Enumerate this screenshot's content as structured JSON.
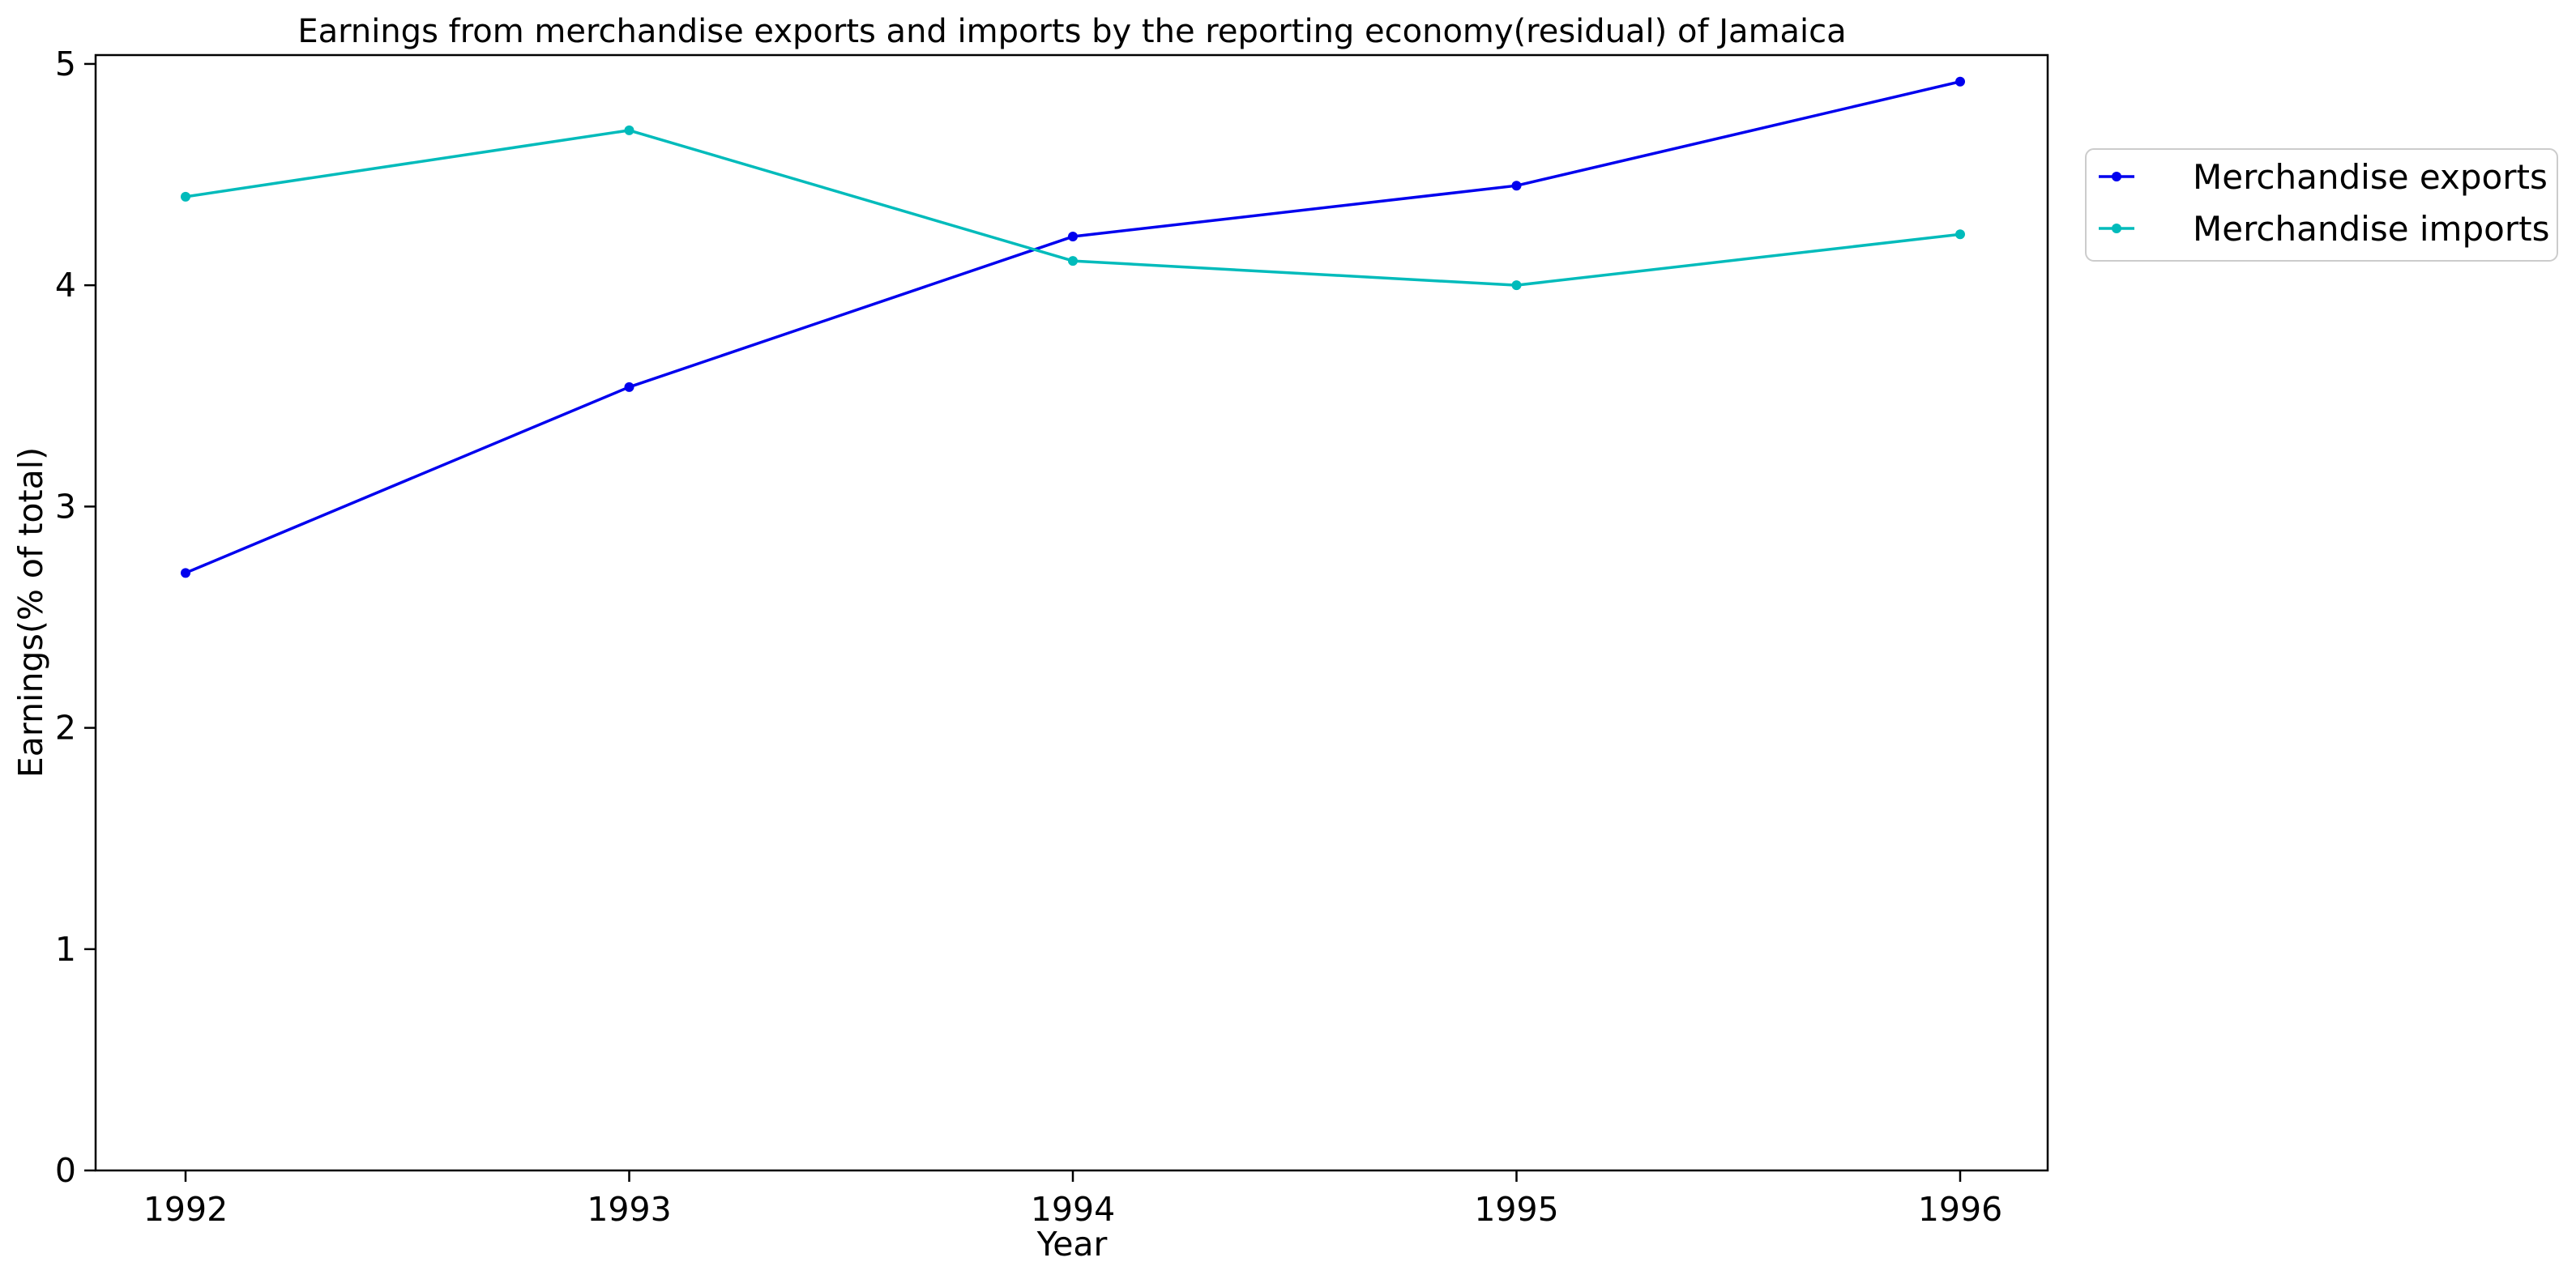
{
  "chart_data": {
    "type": "line",
    "title": "Earnings from merchandise exports and imports by the reporting economy(residual) of Jamaica",
    "xlabel": "Year",
    "ylabel": "Earnings(% of total)",
    "x": [
      1992,
      1993,
      1994,
      1995,
      1996
    ],
    "x_tick_labels": [
      "1992",
      "1993",
      "1994",
      "1995",
      "1996"
    ],
    "y_ticks": [
      0,
      1,
      2,
      3,
      4,
      5
    ],
    "y_tick_labels": [
      "0",
      "1",
      "2",
      "3",
      "4",
      "5"
    ],
    "ylim": [
      0,
      5.04
    ],
    "grid": false,
    "legend_position": "outside top-right",
    "series": [
      {
        "name": "Merchandise exports",
        "color": "#0000ee",
        "values": [
          2.7,
          3.54,
          4.22,
          4.45,
          4.92
        ]
      },
      {
        "name": "Merchandise imports",
        "color": "#00bbbb",
        "values": [
          4.4,
          4.7,
          4.11,
          4.0,
          4.23
        ]
      }
    ]
  }
}
